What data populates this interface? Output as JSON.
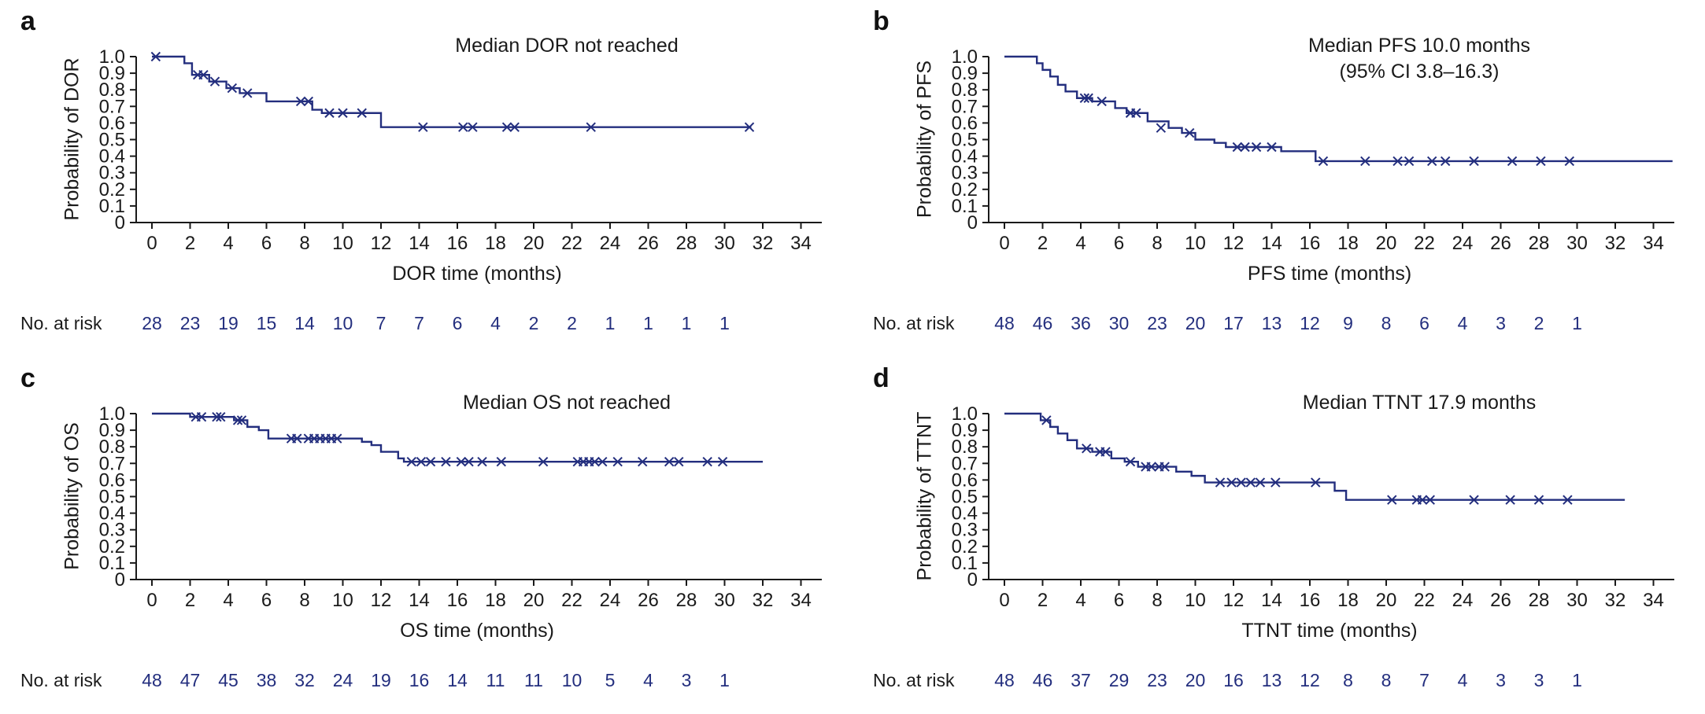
{
  "figure": {
    "background": "#ffffff",
    "curve_color": "#232e7e",
    "axis_color": "#1a1a1a",
    "text_color": "#1a1a1a",
    "risk_number_color": "#232e7e",
    "risk_label": "No. at risk"
  },
  "chart_data": [
    {
      "type": "line",
      "subtype": "kaplan-meier",
      "panel_label": "a",
      "annotation": "Median DOR not reached",
      "ylabel": "Probability of DOR",
      "xlabel": "DOR time (months)",
      "xlim": [
        0,
        35
      ],
      "ylim": [
        0,
        1.0
      ],
      "xticks": [
        0,
        2,
        4,
        6,
        8,
        10,
        12,
        14,
        16,
        18,
        20,
        22,
        24,
        26,
        28,
        30,
        32,
        34
      ],
      "yticks": [
        0,
        0.1,
        0.2,
        0.3,
        0.4,
        0.5,
        0.6,
        0.7,
        0.8,
        0.9,
        1.0
      ],
      "ytick_labels": [
        "0",
        "0.1",
        "0.2",
        "0.3",
        "0.4",
        "0.5",
        "0.6",
        "0.7",
        "0.8",
        "0.9",
        "1.0"
      ],
      "steps": [
        [
          0,
          1.0
        ],
        [
          1.7,
          0.96
        ],
        [
          2.1,
          0.89
        ],
        [
          3.0,
          0.85
        ],
        [
          3.9,
          0.81
        ],
        [
          4.6,
          0.78
        ],
        [
          6.0,
          0.73
        ],
        [
          8.4,
          0.68
        ],
        [
          8.9,
          0.66
        ],
        [
          12.0,
          0.575
        ]
      ],
      "curve_end": 31.4,
      "censors": [
        [
          0.2,
          1.0
        ],
        [
          2.4,
          0.89
        ],
        [
          2.7,
          0.89
        ],
        [
          3.3,
          0.85
        ],
        [
          4.2,
          0.81
        ],
        [
          5.0,
          0.78
        ],
        [
          7.8,
          0.73
        ],
        [
          8.2,
          0.73
        ],
        [
          9.3,
          0.66
        ],
        [
          10.0,
          0.66
        ],
        [
          11.0,
          0.66
        ],
        [
          14.2,
          0.575
        ],
        [
          16.3,
          0.575
        ],
        [
          16.8,
          0.575
        ],
        [
          18.6,
          0.575
        ],
        [
          19.0,
          0.575
        ],
        [
          23.0,
          0.575
        ],
        [
          31.3,
          0.575
        ]
      ],
      "risk_times": [
        0,
        2,
        4,
        6,
        8,
        10,
        12,
        14,
        16,
        18,
        20,
        22,
        24,
        26,
        28,
        30
      ],
      "risk_counts": [
        28,
        23,
        19,
        15,
        14,
        10,
        7,
        7,
        6,
        4,
        2,
        2,
        1,
        1,
        1,
        1
      ]
    },
    {
      "type": "line",
      "subtype": "kaplan-meier",
      "panel_label": "b",
      "annotation": "Median PFS 10.0 months\n(95% CI 3.8–16.3)",
      "ylabel": "Probability of PFS",
      "xlabel": "PFS time (months)",
      "xlim": [
        0,
        35
      ],
      "ylim": [
        0,
        1.0
      ],
      "xticks": [
        0,
        2,
        4,
        6,
        8,
        10,
        12,
        14,
        16,
        18,
        20,
        22,
        24,
        26,
        28,
        30,
        32,
        34
      ],
      "yticks": [
        0,
        0.1,
        0.2,
        0.3,
        0.4,
        0.5,
        0.6,
        0.7,
        0.8,
        0.9,
        1.0
      ],
      "ytick_labels": [
        "0",
        "0.1",
        "0.2",
        "0.3",
        "0.4",
        "0.5",
        "0.6",
        "0.7",
        "0.8",
        "0.9",
        "1.0"
      ],
      "steps": [
        [
          0,
          1.0
        ],
        [
          1.7,
          0.96
        ],
        [
          2.0,
          0.92
        ],
        [
          2.4,
          0.88
        ],
        [
          2.8,
          0.83
        ],
        [
          3.2,
          0.79
        ],
        [
          3.8,
          0.75
        ],
        [
          4.6,
          0.73
        ],
        [
          5.8,
          0.69
        ],
        [
          6.4,
          0.66
        ],
        [
          7.5,
          0.61
        ],
        [
          8.6,
          0.57
        ],
        [
          9.3,
          0.54
        ],
        [
          10.0,
          0.5
        ],
        [
          11.0,
          0.48
        ],
        [
          11.6,
          0.455
        ],
        [
          14.5,
          0.43
        ],
        [
          16.3,
          0.37
        ]
      ],
      "curve_end": 35.0,
      "censors": [
        [
          4.2,
          0.75
        ],
        [
          4.4,
          0.75
        ],
        [
          5.1,
          0.73
        ],
        [
          6.6,
          0.66
        ],
        [
          6.9,
          0.66
        ],
        [
          8.2,
          0.57
        ],
        [
          9.7,
          0.54
        ],
        [
          12.2,
          0.455
        ],
        [
          12.6,
          0.455
        ],
        [
          13.2,
          0.455
        ],
        [
          14.0,
          0.455
        ],
        [
          16.7,
          0.37
        ],
        [
          18.9,
          0.37
        ],
        [
          20.6,
          0.37
        ],
        [
          21.2,
          0.37
        ],
        [
          22.4,
          0.37
        ],
        [
          23.1,
          0.37
        ],
        [
          24.6,
          0.37
        ],
        [
          26.6,
          0.37
        ],
        [
          28.1,
          0.37
        ],
        [
          29.6,
          0.37
        ]
      ],
      "risk_times": [
        0,
        2,
        4,
        6,
        8,
        10,
        12,
        14,
        16,
        18,
        20,
        22,
        24,
        26,
        28,
        30
      ],
      "risk_counts": [
        48,
        46,
        36,
        30,
        23,
        20,
        17,
        13,
        12,
        9,
        8,
        6,
        4,
        3,
        2,
        1
      ]
    },
    {
      "type": "line",
      "subtype": "kaplan-meier",
      "panel_label": "c",
      "annotation": "Median OS not reached",
      "ylabel": "Probability of OS",
      "xlabel": "OS time (months)",
      "xlim": [
        0,
        35
      ],
      "ylim": [
        0,
        1.0
      ],
      "xticks": [
        0,
        2,
        4,
        6,
        8,
        10,
        12,
        14,
        16,
        18,
        20,
        22,
        24,
        26,
        28,
        30,
        32,
        34
      ],
      "yticks": [
        0,
        0.1,
        0.2,
        0.3,
        0.4,
        0.5,
        0.6,
        0.7,
        0.8,
        0.9,
        1.0
      ],
      "ytick_labels": [
        "0",
        "0.1",
        "0.2",
        "0.3",
        "0.4",
        "0.5",
        "0.6",
        "0.7",
        "0.8",
        "0.9",
        "1.0"
      ],
      "steps": [
        [
          0,
          1.0
        ],
        [
          2.0,
          0.98
        ],
        [
          4.3,
          0.96
        ],
        [
          5.0,
          0.92
        ],
        [
          5.6,
          0.9
        ],
        [
          6.1,
          0.85
        ],
        [
          11.0,
          0.83
        ],
        [
          11.5,
          0.81
        ],
        [
          12.0,
          0.77
        ],
        [
          12.9,
          0.73
        ],
        [
          13.2,
          0.71
        ]
      ],
      "curve_end": 32.0,
      "censors": [
        [
          2.3,
          0.98
        ],
        [
          2.6,
          0.98
        ],
        [
          3.4,
          0.98
        ],
        [
          3.6,
          0.98
        ],
        [
          4.5,
          0.96
        ],
        [
          4.7,
          0.96
        ],
        [
          7.3,
          0.85
        ],
        [
          7.6,
          0.85
        ],
        [
          8.2,
          0.85
        ],
        [
          8.5,
          0.85
        ],
        [
          8.8,
          0.85
        ],
        [
          9.1,
          0.85
        ],
        [
          9.4,
          0.85
        ],
        [
          9.7,
          0.85
        ],
        [
          13.6,
          0.71
        ],
        [
          14.1,
          0.71
        ],
        [
          14.6,
          0.71
        ],
        [
          15.4,
          0.71
        ],
        [
          16.2,
          0.71
        ],
        [
          16.6,
          0.71
        ],
        [
          17.3,
          0.71
        ],
        [
          18.3,
          0.71
        ],
        [
          20.5,
          0.71
        ],
        [
          22.3,
          0.71
        ],
        [
          22.6,
          0.71
        ],
        [
          22.9,
          0.71
        ],
        [
          23.2,
          0.71
        ],
        [
          23.6,
          0.71
        ],
        [
          24.4,
          0.71
        ],
        [
          25.7,
          0.71
        ],
        [
          27.1,
          0.71
        ],
        [
          27.6,
          0.71
        ],
        [
          29.1,
          0.71
        ],
        [
          29.9,
          0.71
        ]
      ],
      "risk_times": [
        0,
        2,
        4,
        6,
        8,
        10,
        12,
        14,
        16,
        18,
        20,
        22,
        24,
        26,
        28,
        30
      ],
      "risk_counts": [
        48,
        47,
        45,
        38,
        32,
        24,
        19,
        16,
        14,
        11,
        11,
        10,
        5,
        4,
        3,
        1
      ]
    },
    {
      "type": "line",
      "subtype": "kaplan-meier",
      "panel_label": "d",
      "annotation": "Median TTNT 17.9 months",
      "ylabel": "Probability of TTNT",
      "xlabel": "TTNT time (months)",
      "xlim": [
        0,
        35
      ],
      "ylim": [
        0,
        1.0
      ],
      "xticks": [
        0,
        2,
        4,
        6,
        8,
        10,
        12,
        14,
        16,
        18,
        20,
        22,
        24,
        26,
        28,
        30,
        32,
        34
      ],
      "yticks": [
        0,
        0.1,
        0.2,
        0.3,
        0.4,
        0.5,
        0.6,
        0.7,
        0.8,
        0.9,
        1.0
      ],
      "ytick_labels": [
        "0",
        "0.1",
        "0.2",
        "0.3",
        "0.4",
        "0.5",
        "0.6",
        "0.7",
        "0.8",
        "0.9",
        "1.0"
      ],
      "steps": [
        [
          0,
          1.0
        ],
        [
          1.9,
          0.96
        ],
        [
          2.4,
          0.92
        ],
        [
          2.8,
          0.88
        ],
        [
          3.3,
          0.84
        ],
        [
          3.8,
          0.79
        ],
        [
          4.6,
          0.77
        ],
        [
          5.6,
          0.73
        ],
        [
          6.3,
          0.71
        ],
        [
          7.0,
          0.68
        ],
        [
          9.0,
          0.65
        ],
        [
          9.8,
          0.625
        ],
        [
          10.5,
          0.585
        ],
        [
          17.3,
          0.535
        ],
        [
          17.9,
          0.48
        ]
      ],
      "curve_end": 32.5,
      "censors": [
        [
          2.2,
          0.96
        ],
        [
          4.3,
          0.79
        ],
        [
          5.0,
          0.77
        ],
        [
          5.3,
          0.77
        ],
        [
          6.6,
          0.71
        ],
        [
          7.4,
          0.68
        ],
        [
          7.7,
          0.68
        ],
        [
          8.1,
          0.68
        ],
        [
          8.4,
          0.68
        ],
        [
          11.3,
          0.585
        ],
        [
          11.9,
          0.585
        ],
        [
          12.4,
          0.585
        ],
        [
          12.9,
          0.585
        ],
        [
          13.4,
          0.585
        ],
        [
          14.2,
          0.585
        ],
        [
          16.3,
          0.585
        ],
        [
          20.3,
          0.48
        ],
        [
          21.6,
          0.48
        ],
        [
          21.9,
          0.48
        ],
        [
          22.3,
          0.48
        ],
        [
          24.6,
          0.48
        ],
        [
          26.5,
          0.48
        ],
        [
          28.0,
          0.48
        ],
        [
          29.5,
          0.48
        ]
      ],
      "risk_times": [
        0,
        2,
        4,
        6,
        8,
        10,
        12,
        14,
        16,
        18,
        20,
        22,
        24,
        26,
        28,
        30
      ],
      "risk_counts": [
        48,
        46,
        37,
        29,
        23,
        20,
        16,
        13,
        12,
        8,
        8,
        7,
        4,
        3,
        3,
        1
      ]
    }
  ]
}
